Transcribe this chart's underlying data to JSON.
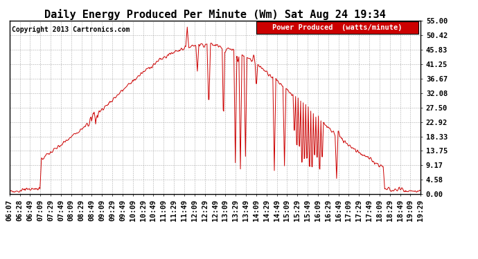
{
  "title": "Daily Energy Produced Per Minute (Wm) Sat Aug 24 19:34",
  "copyright": "Copyright 2013 Cartronics.com",
  "legend_label": "Power Produced  (watts/minute)",
  "legend_bg": "#cc0000",
  "legend_fg": "#ffffff",
  "line_color": "#cc0000",
  "bg_color": "#ffffff",
  "plot_bg": "#ffffff",
  "grid_color": "#999999",
  "ylim": [
    0.0,
    55.0
  ],
  "yticks": [
    0.0,
    4.58,
    9.17,
    13.75,
    18.33,
    22.92,
    27.5,
    32.08,
    36.67,
    41.25,
    45.83,
    50.42,
    55.0
  ],
  "xtick_labels": [
    "06:07",
    "06:28",
    "06:49",
    "07:09",
    "07:29",
    "07:49",
    "08:09",
    "08:29",
    "08:49",
    "09:09",
    "09:29",
    "09:49",
    "10:09",
    "10:29",
    "10:49",
    "11:09",
    "11:29",
    "11:49",
    "12:09",
    "12:29",
    "12:49",
    "13:09",
    "13:29",
    "13:49",
    "14:09",
    "14:29",
    "14:49",
    "15:09",
    "15:29",
    "15:49",
    "16:09",
    "16:29",
    "16:49",
    "17:09",
    "17:29",
    "17:49",
    "18:09",
    "18:29",
    "18:49",
    "19:09",
    "19:29"
  ],
  "title_fontsize": 11,
  "axis_fontsize": 7.5,
  "copyright_fontsize": 7,
  "legend_fontsize": 7.5
}
